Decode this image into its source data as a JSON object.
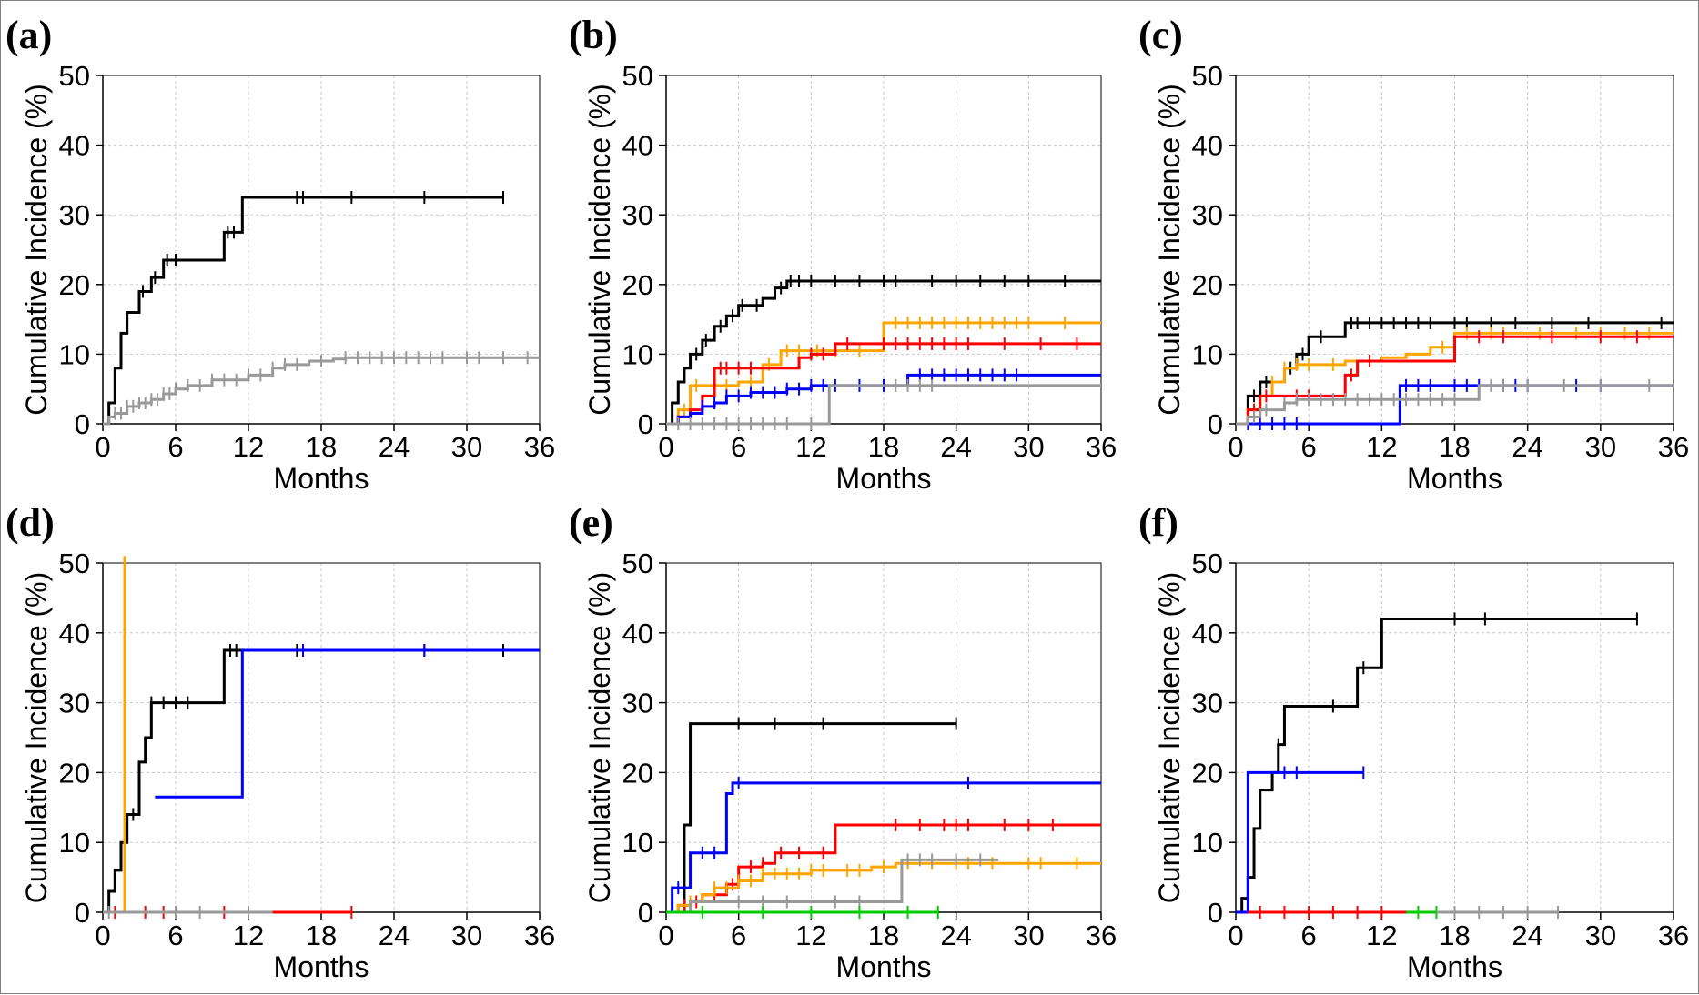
{
  "chart_data": [
    {
      "panel": "(a)",
      "type": "line",
      "xlabel": "Months",
      "ylabel": "Cumulative Incidence (%)",
      "xlim": [
        0,
        36
      ],
      "ylim": [
        0,
        50
      ],
      "xticks": [
        0,
        6,
        12,
        18,
        24,
        30,
        36
      ],
      "yticks": [
        0,
        10,
        20,
        30,
        40,
        50
      ],
      "grid": true,
      "series": [
        {
          "color": "#000000",
          "x": [
            0,
            0.5,
            1,
            1.5,
            2,
            3,
            4,
            5,
            6,
            7,
            8,
            10,
            11.5,
            33
          ],
          "y": [
            0,
            3,
            8,
            13,
            16,
            19,
            21,
            23.5,
            23.5,
            23.5,
            23.5,
            27.5,
            32.5,
            32.5
          ],
          "censor": [
            3.3,
            4.3,
            5.3,
            6,
            10.3,
            10.8,
            16,
            16.5,
            20.5,
            26.5,
            33
          ]
        },
        {
          "color": "#999999",
          "x": [
            0,
            0.5,
            1,
            2,
            3,
            4,
            5,
            6,
            7,
            9,
            12,
            14,
            15,
            17,
            19,
            20,
            36
          ],
          "y": [
            0,
            1,
            1.5,
            2.5,
            3,
            3.5,
            4.3,
            5,
            5.5,
            6.3,
            7,
            8,
            8.5,
            9,
            9.3,
            9.5,
            9.5
          ],
          "censor": [
            1,
            1.5,
            2,
            2.5,
            3,
            3.5,
            4,
            4.5,
            5,
            5.5,
            6,
            7,
            8,
            9,
            10,
            11,
            12,
            13,
            14,
            15,
            16,
            18,
            20,
            21,
            22,
            23,
            24,
            25,
            26,
            27,
            28,
            30,
            31,
            33,
            35
          ]
        }
      ]
    },
    {
      "panel": "(b)",
      "type": "line",
      "xlabel": "Months",
      "ylabel": "Cumulative Incidence (%)",
      "xlim": [
        0,
        36
      ],
      "ylim": [
        0,
        50
      ],
      "xticks": [
        0,
        6,
        12,
        18,
        24,
        30,
        36
      ],
      "yticks": [
        0,
        10,
        20,
        30,
        40,
        50
      ],
      "grid": true,
      "series": [
        {
          "color": "#000000",
          "x": [
            0,
            0.5,
            1,
            1.5,
            2,
            3,
            4,
            5,
            6,
            7,
            8,
            9,
            10,
            36
          ],
          "y": [
            0,
            3,
            6,
            8,
            10,
            12,
            14,
            15.5,
            17,
            17,
            18,
            19.5,
            20.5,
            20.5
          ],
          "censor": [
            2.5,
            3.3,
            4.5,
            5.5,
            6.3,
            7.5,
            9.5,
            10.3,
            11,
            12,
            14,
            16,
            18,
            19,
            22,
            24,
            26,
            28,
            30,
            33
          ]
        },
        {
          "color": "#FFA500",
          "x": [
            0,
            1,
            2,
            4,
            6,
            8,
            9.5,
            12,
            18,
            36
          ],
          "y": [
            0,
            2,
            5.5,
            5.5,
            6,
            8.5,
            10.5,
            10.5,
            14.5,
            14.5
          ],
          "censor": [
            1.5,
            2.5,
            4,
            5,
            7,
            8.5,
            10,
            11,
            12.5,
            14,
            16,
            19,
            20,
            21,
            22,
            23,
            24,
            25,
            26,
            27,
            28,
            29,
            30,
            33
          ]
        },
        {
          "color": "#FF0000",
          "x": [
            0,
            1,
            2,
            3,
            4,
            10,
            11,
            12,
            14,
            36
          ],
          "y": [
            0,
            1,
            2,
            4,
            8,
            8,
            9.5,
            10,
            11.5,
            11.5
          ],
          "censor": [
            4.5,
            5,
            6,
            7,
            12,
            13,
            15,
            18,
            19,
            20,
            21,
            22,
            23,
            24,
            25,
            28,
            31,
            34
          ]
        },
        {
          "color": "#0000FF",
          "x": [
            0,
            1,
            2,
            3,
            4,
            5,
            6,
            7,
            8,
            10,
            12,
            20,
            36
          ],
          "y": [
            0,
            1,
            1.5,
            2.5,
            3,
            4,
            4,
            4.5,
            4.5,
            5,
            5.5,
            7,
            7
          ],
          "censor": [
            3,
            4,
            5,
            6,
            7,
            8,
            9,
            10,
            11,
            12,
            13,
            14,
            16,
            18,
            21,
            22,
            23,
            24,
            25,
            26,
            27,
            28,
            29
          ]
        },
        {
          "color": "#999999",
          "x": [
            0,
            13.5,
            36
          ],
          "y": [
            0,
            5.5,
            5.5
          ],
          "censor": [
            1,
            2,
            3,
            4,
            5,
            6,
            7,
            8,
            9,
            10,
            12,
            19,
            20,
            21,
            22
          ]
        }
      ]
    },
    {
      "panel": "(c)",
      "type": "line",
      "xlabel": "Months",
      "ylabel": "Cumulative Incidence (%)",
      "xlim": [
        0,
        36
      ],
      "ylim": [
        0,
        50
      ],
      "xticks": [
        0,
        6,
        12,
        18,
        24,
        30,
        36
      ],
      "yticks": [
        0,
        10,
        20,
        30,
        40,
        50
      ],
      "grid": true,
      "series": [
        {
          "color": "#000000",
          "x": [
            0,
            1,
            2,
            3,
            4,
            5,
            6,
            8,
            9,
            36
          ],
          "y": [
            0,
            4,
            6,
            6,
            8,
            10,
            12.5,
            12.5,
            14.5,
            14.5
          ],
          "censor": [
            1.5,
            2.5,
            4.5,
            5.5,
            7,
            9.5,
            10,
            11,
            12,
            13,
            14,
            15,
            16,
            18,
            19,
            21,
            23,
            26,
            29,
            35
          ]
        },
        {
          "color": "#FFA500",
          "x": [
            0,
            1,
            2,
            3,
            4,
            5,
            7,
            9,
            10,
            12,
            14,
            16,
            18,
            36
          ],
          "y": [
            0,
            2,
            4,
            6,
            8,
            8.5,
            8.5,
            9,
            9,
            9.5,
            10,
            11,
            13,
            13
          ],
          "censor": [
            3,
            4,
            5,
            6,
            8,
            17,
            19,
            21,
            22,
            25,
            28,
            30,
            32,
            34
          ]
        },
        {
          "color": "#FF0000",
          "x": [
            0,
            1,
            2,
            3,
            9,
            10,
            13,
            18,
            36
          ],
          "y": [
            0,
            2,
            4,
            4,
            7,
            9,
            9,
            12.5,
            12.5
          ],
          "censor": [
            1.5,
            2.5,
            5,
            6,
            9.5,
            11,
            20,
            22,
            26,
            30,
            33
          ]
        },
        {
          "color": "#0000FF",
          "x": [
            0,
            13.5,
            36
          ],
          "y": [
            0,
            5.5,
            5.5
          ],
          "censor": [
            1,
            2,
            3,
            4,
            5,
            14,
            15,
            16,
            18,
            19,
            20,
            21,
            22,
            23,
            24,
            28,
            30
          ]
        },
        {
          "color": "#999999",
          "x": [
            0,
            1,
            2,
            3,
            4,
            5,
            20,
            36
          ],
          "y": [
            0,
            1,
            2,
            2,
            3,
            3.5,
            5.5,
            5.5
          ],
          "censor": [
            1.5,
            2.5,
            4,
            5,
            6,
            7,
            8,
            9,
            10,
            11,
            12,
            13,
            14,
            15,
            16,
            17,
            18,
            21,
            22,
            24,
            27,
            30,
            34
          ]
        }
      ]
    },
    {
      "panel": "(d)",
      "type": "line",
      "xlabel": "Months",
      "ylabel": "Cumulative Incidence (%)",
      "xlim": [
        0,
        36
      ],
      "ylim": [
        0,
        50
      ],
      "xticks": [
        0,
        6,
        12,
        18,
        24,
        30,
        36
      ],
      "yticks": [
        0,
        10,
        20,
        30,
        40,
        50
      ],
      "grid": true,
      "series": [
        {
          "color": "#000000",
          "x": [
            0,
            0.5,
            1,
            1.5,
            2,
            3,
            3.5,
            4,
            10,
            33
          ],
          "y": [
            0,
            3,
            6,
            10,
            14,
            21.5,
            25,
            30,
            37.5,
            37.5
          ],
          "censor": [
            2.5,
            4,
            5,
            6,
            7,
            10.5,
            11,
            16,
            26.5,
            33
          ]
        },
        {
          "color": "#FFA500",
          "x": [
            1.8,
            1.8
          ],
          "y": [
            0,
            51
          ],
          "censor": []
        },
        {
          "color": "#0000FF",
          "x": [
            4.3,
            11.5,
            36
          ],
          "y": [
            16.5,
            37.5,
            37.5
          ],
          "censor": [
            16.5,
            26.5
          ]
        },
        {
          "color": "#FF0000",
          "x": [
            14,
            20.5
          ],
          "y": [
            0,
            0
          ],
          "censor": [
            1,
            3.5,
            5,
            10,
            20.5
          ]
        },
        {
          "color": "#999999",
          "x": [
            0,
            14
          ],
          "y": [
            0,
            0
          ],
          "censor": [
            0.5,
            6,
            8,
            12
          ]
        }
      ]
    },
    {
      "panel": "(e)",
      "type": "line",
      "xlabel": "Months",
      "ylabel": "Cumulative Incidence (%)",
      "xlim": [
        0,
        36
      ],
      "ylim": [
        0,
        50
      ],
      "xticks": [
        0,
        6,
        12,
        18,
        24,
        30,
        36
      ],
      "yticks": [
        0,
        10,
        20,
        30,
        40,
        50
      ],
      "grid": true,
      "series": [
        {
          "color": "#000000",
          "x": [
            0,
            1.5,
            2,
            24
          ],
          "y": [
            0,
            12.5,
            27,
            27
          ],
          "censor": [
            6,
            9,
            13,
            24
          ]
        },
        {
          "color": "#0000FF",
          "x": [
            0,
            0.5,
            2,
            5,
            5.5,
            36
          ],
          "y": [
            0,
            3.5,
            8.5,
            17,
            18.5,
            18.5
          ],
          "censor": [
            1,
            3,
            4,
            6,
            25
          ]
        },
        {
          "color": "#FF0000",
          "x": [
            0,
            1,
            2,
            3,
            5,
            6,
            8,
            9,
            12,
            14,
            36
          ],
          "y": [
            0,
            1,
            1.5,
            2.5,
            4,
            6.5,
            7,
            8.5,
            8.5,
            12.5,
            12.5
          ],
          "censor": [
            1.5,
            2.5,
            4,
            5.5,
            7,
            8,
            9.5,
            11,
            13,
            19,
            21,
            23,
            24,
            25,
            28,
            30,
            32
          ]
        },
        {
          "color": "#FFA500",
          "x": [
            0,
            1,
            2,
            3,
            4,
            6,
            8,
            10,
            12,
            14,
            17,
            19,
            36
          ],
          "y": [
            0,
            1,
            1.5,
            2.5,
            3.5,
            4.5,
            5.5,
            5.5,
            6,
            6,
            6.5,
            7,
            7
          ],
          "censor": [
            2,
            4,
            5,
            6,
            7,
            8,
            9,
            10,
            11,
            12,
            13,
            15,
            16,
            18,
            20,
            22,
            24,
            25,
            27,
            30,
            31,
            34
          ]
        },
        {
          "color": "#999999",
          "x": [
            0,
            2,
            19.5,
            27.5
          ],
          "y": [
            0,
            1.5,
            7.5,
            7.5
          ],
          "censor": [
            6,
            8,
            10,
            14,
            16,
            20,
            21,
            22,
            24,
            26
          ]
        },
        {
          "color": "#00CC00",
          "x": [
            0,
            22.5
          ],
          "y": [
            0,
            0
          ],
          "censor": [
            3,
            8,
            12,
            16,
            20,
            22.5
          ]
        }
      ]
    },
    {
      "panel": "(f)",
      "type": "line",
      "xlabel": "Months",
      "ylabel": "Cumulative Incidence (%)",
      "xlim": [
        0,
        36
      ],
      "ylim": [
        0,
        50
      ],
      "xticks": [
        0,
        6,
        12,
        18,
        24,
        30,
        36
      ],
      "yticks": [
        0,
        10,
        20,
        30,
        40,
        50
      ],
      "grid": true,
      "series": [
        {
          "color": "#000000",
          "x": [
            0,
            0.5,
            1,
            1.5,
            2,
            3,
            3.5,
            4,
            9,
            10,
            11,
            12,
            33
          ],
          "y": [
            0,
            2,
            5,
            12,
            17.5,
            20,
            24,
            29.5,
            29.5,
            35,
            35,
            42,
            42
          ],
          "censor": [
            3.5,
            8,
            10.5,
            18,
            20.5,
            33
          ]
        },
        {
          "color": "#0000FF",
          "x": [
            0,
            0.8,
            1,
            10.5
          ],
          "y": [
            0,
            0,
            20,
            20
          ],
          "censor": [
            4,
            5,
            10.5
          ]
        },
        {
          "color": "#FF0000",
          "x": [
            1,
            14
          ],
          "y": [
            0,
            0
          ],
          "censor": [
            2,
            4,
            6,
            8,
            10,
            12
          ]
        },
        {
          "color": "#00CC00",
          "x": [
            14,
            16.5
          ],
          "y": [
            0,
            0
          ],
          "censor": [
            15,
            16.5
          ]
        },
        {
          "color": "#999999",
          "x": [
            16.5,
            26.5
          ],
          "y": [
            0,
            0
          ],
          "censor": [
            18,
            20,
            22,
            24,
            26.5
          ]
        }
      ]
    }
  ]
}
